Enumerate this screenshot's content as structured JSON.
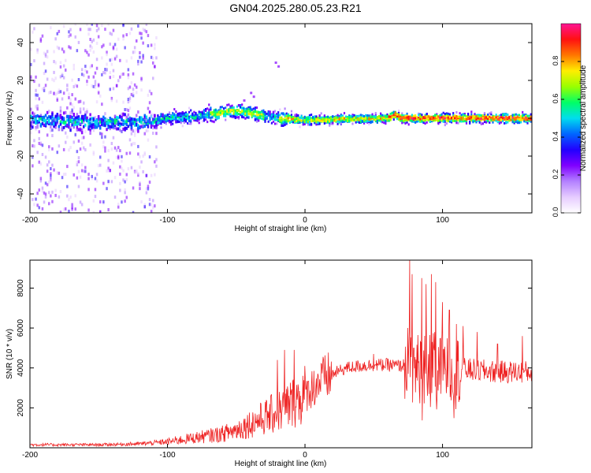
{
  "title": "GN04.2025.280.05.23.R21",
  "colors": {
    "snr_line": "#ee2222",
    "colormap": [
      "#ffffff",
      "#e6ccff",
      "#b380ff",
      "#8000ff",
      "#2200ff",
      "#0066ff",
      "#00ddee",
      "#00ff66",
      "#99ff00",
      "#ffee00",
      "#ff7700",
      "#ff1111",
      "#ff1493"
    ]
  },
  "chart_data": [
    {
      "type": "heatmap",
      "name": "spectrogram",
      "xlabel": "Height of straight line (km)",
      "ylabel": "Frequency (Hz)",
      "xlim": [
        -200,
        165
      ],
      "ylim": [
        -50,
        50
      ],
      "x_ticks": [
        "-200",
        "-100",
        "0",
        "100"
      ],
      "x_tick_values": [
        -200,
        -100,
        0,
        100
      ],
      "y_ticks": [
        "-40",
        "-20",
        "0",
        "20",
        "40"
      ],
      "y_tick_values": [
        -40,
        -20,
        0,
        20,
        40
      ],
      "colorbar": {
        "label": "Normalized spectral amplitude",
        "range": [
          0,
          1
        ],
        "ticks": [
          "0.0",
          "0.2",
          "0.4",
          "0.6",
          "0.8"
        ],
        "tick_values": [
          0,
          0.2,
          0.4,
          0.6,
          0.8
        ]
      },
      "ridge_center_hz": {
        "x": [
          -200,
          -160,
          -120,
          -100,
          -80,
          -60,
          -50,
          -40,
          -30,
          -20,
          0,
          60,
          65,
          70,
          80,
          100,
          120,
          150,
          165
        ],
        "y": [
          -1,
          -2,
          -2,
          0,
          1,
          3,
          4,
          3,
          1,
          0,
          -1,
          0,
          2,
          0,
          0,
          0,
          0,
          0,
          0
        ]
      }
    },
    {
      "type": "line",
      "name": "snr",
      "xlabel": "Height of straight line (km)",
      "ylabel": "SNR (10 * v/v)",
      "xlim": [
        -200,
        165
      ],
      "ylim": [
        0,
        9400
      ],
      "x_ticks": [
        "-200",
        "-100",
        "0",
        "100"
      ],
      "x_tick_values": [
        -200,
        -100,
        0,
        100
      ],
      "y_ticks": [
        "2000",
        "4000",
        "6000",
        "8000"
      ],
      "y_tick_values": [
        2000,
        4000,
        6000,
        8000
      ],
      "envelope": {
        "x": [
          -200,
          -150,
          -120,
          -100,
          -80,
          -60,
          -50,
          -40,
          -30,
          -20,
          -10,
          0,
          10,
          20,
          30,
          40,
          50,
          60,
          70,
          75,
          80,
          90,
          100,
          120,
          140,
          165
        ],
        "y": [
          150,
          150,
          200,
          300,
          500,
          700,
          900,
          1200,
          1500,
          1800,
          2200,
          2700,
          3300,
          3700,
          4000,
          4100,
          4150,
          4150,
          4100,
          4200,
          4000,
          4000,
          4000,
          3900,
          3800,
          3800
        ]
      },
      "peaks": {
        "x": [
          -20,
          -15,
          -8,
          50,
          76,
          78,
          85,
          88,
          92,
          95,
          100,
          105,
          110,
          115,
          125,
          140,
          158
        ],
        "y": [
          4400,
          4900,
          4900,
          4700,
          9400,
          8700,
          8500,
          8200,
          8700,
          8300,
          7300,
          6900,
          6200,
          6100,
          5800,
          5200,
          5600
        ]
      }
    }
  ]
}
